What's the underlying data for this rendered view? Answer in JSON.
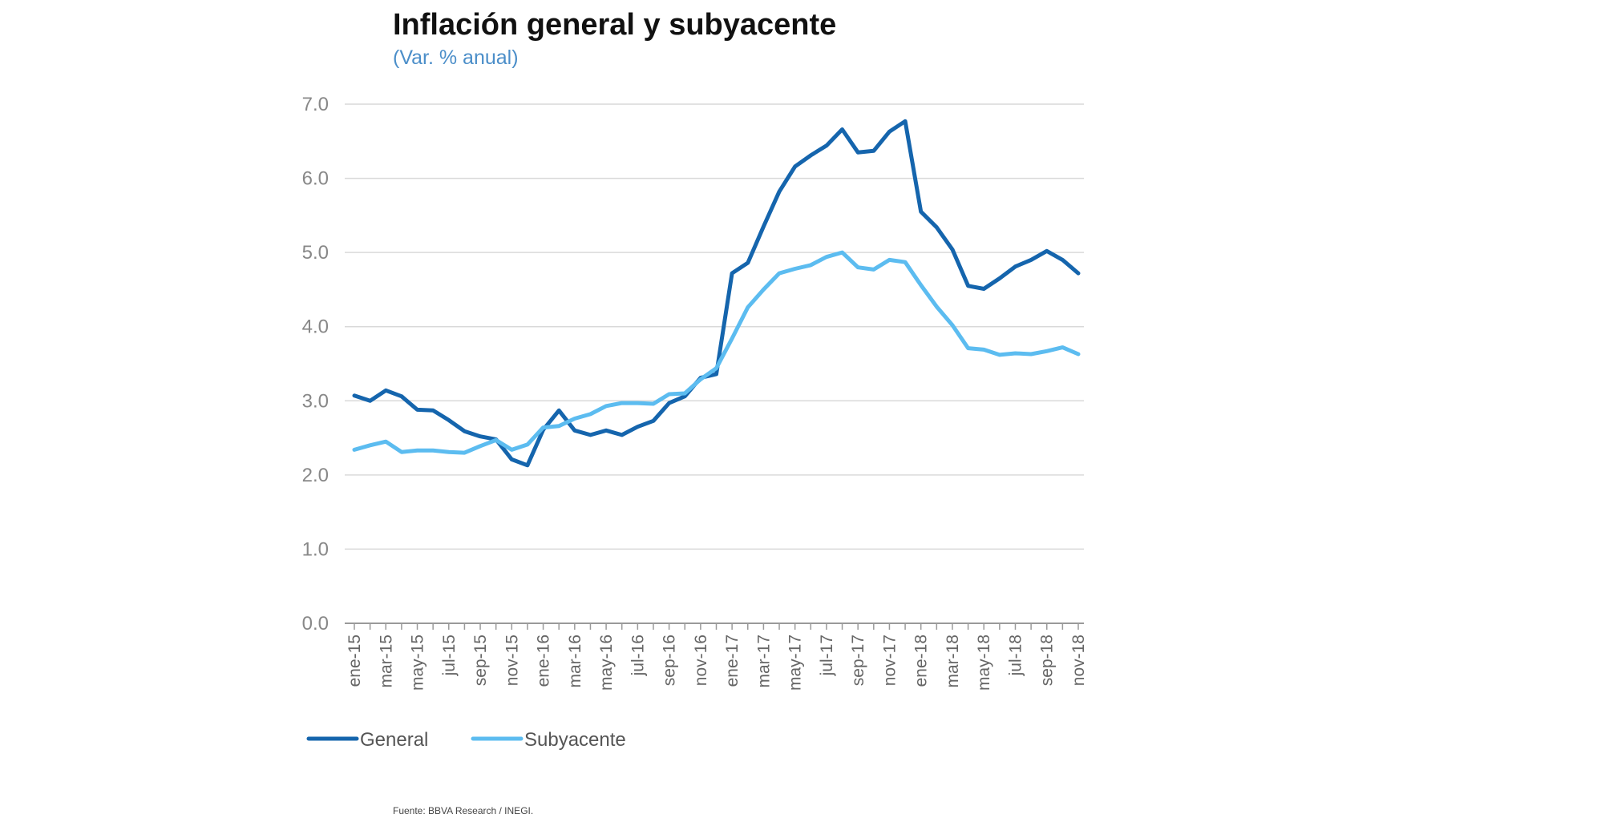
{
  "chart_data": {
    "type": "line",
    "title": "Inflación general y subyacente",
    "subtitle": "(Var. % anual)",
    "xlabel": "",
    "ylabel": "",
    "ylim": [
      0,
      7
    ],
    "yticks": [
      "0.0",
      "1.0",
      "2.0",
      "3.0",
      "4.0",
      "5.0",
      "6.0",
      "7.0"
    ],
    "grid": true,
    "legend_position": "bottom-left",
    "x": [
      "ene-15",
      "feb-15",
      "mar-15",
      "abr-15",
      "may-15",
      "jun-15",
      "jul-15",
      "ago-15",
      "sep-15",
      "oct-15",
      "nov-15",
      "dic-15",
      "ene-16",
      "feb-16",
      "mar-16",
      "abr-16",
      "may-16",
      "jun-16",
      "jul-16",
      "ago-16",
      "sep-16",
      "oct-16",
      "nov-16",
      "dic-16",
      "ene-17",
      "feb-17",
      "mar-17",
      "abr-17",
      "may-17",
      "jun-17",
      "jul-17",
      "ago-17",
      "sep-17",
      "oct-17",
      "nov-17",
      "dic-17",
      "ene-18",
      "feb-18",
      "mar-18",
      "abr-18",
      "may-18",
      "jun-18",
      "jul-18",
      "ago-18",
      "sep-18",
      "oct-18",
      "nov-18"
    ],
    "x_tick_labels": [
      "ene-15",
      "mar-15",
      "may-15",
      "jul-15",
      "sep-15",
      "nov-15",
      "ene-16",
      "mar-16",
      "may-16",
      "jul-16",
      "sep-16",
      "nov-16",
      "ene-17",
      "mar-17",
      "may-17",
      "jul-17",
      "sep-17",
      "nov-17",
      "ene-18",
      "mar-18",
      "may-18",
      "jul-18",
      "sep-18",
      "nov-18"
    ],
    "series": [
      {
        "name": "General",
        "color": "#1565ad",
        "values": [
          3.07,
          3.0,
          3.14,
          3.06,
          2.88,
          2.87,
          2.74,
          2.59,
          2.52,
          2.48,
          2.21,
          2.13,
          2.61,
          2.87,
          2.6,
          2.54,
          2.6,
          2.54,
          2.65,
          2.73,
          2.97,
          3.06,
          3.31,
          3.36,
          4.72,
          4.86,
          5.35,
          5.82,
          6.16,
          6.31,
          6.44,
          6.66,
          6.35,
          6.37,
          6.63,
          6.77,
          5.55,
          5.34,
          5.04,
          4.55,
          4.51,
          4.65,
          4.81,
          4.9,
          5.02,
          4.9,
          4.72
        ]
      },
      {
        "name": "Subyacente",
        "color": "#5cbcf0",
        "values": [
          2.34,
          2.4,
          2.45,
          2.31,
          2.33,
          2.33,
          2.31,
          2.3,
          2.39,
          2.47,
          2.34,
          2.41,
          2.64,
          2.66,
          2.76,
          2.82,
          2.93,
          2.97,
          2.97,
          2.96,
          3.09,
          3.1,
          3.29,
          3.44,
          3.84,
          4.26,
          4.5,
          4.72,
          4.78,
          4.83,
          4.94,
          5.0,
          4.8,
          4.77,
          4.9,
          4.87,
          4.56,
          4.27,
          4.02,
          3.71,
          3.69,
          3.62,
          3.64,
          3.63,
          3.67,
          3.72,
          3.63
        ]
      }
    ]
  },
  "source": "Fuente: BBVA Research / INEGI."
}
